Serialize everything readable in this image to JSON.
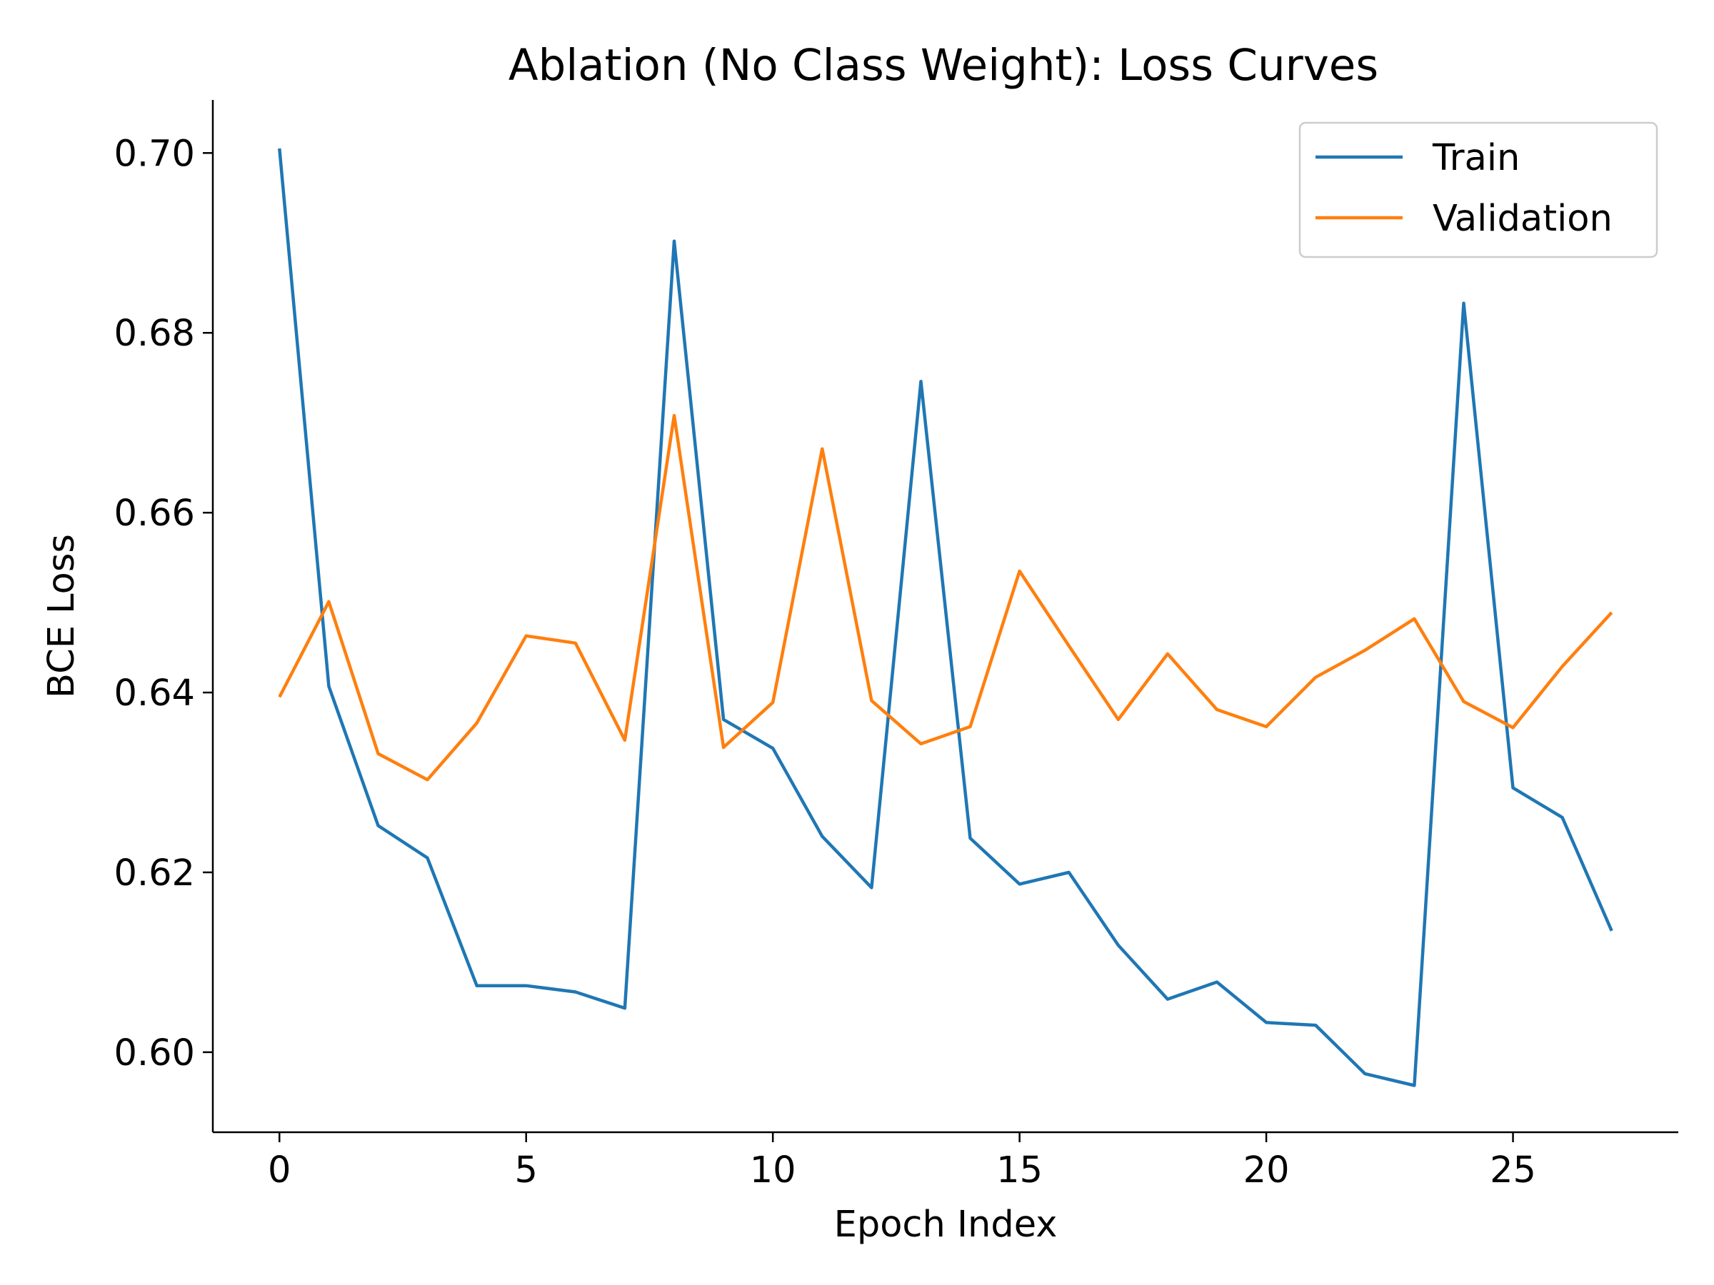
{
  "chart_data": {
    "type": "line",
    "title": "Ablation (No Class Weight): Loss Curves",
    "xlabel": "Epoch Index",
    "ylabel": "BCE Loss",
    "xlim": [
      -1.35,
      28.35
    ],
    "ylim": [
      0.5911,
      0.7059
    ],
    "xticks": [
      0,
      5,
      10,
      15,
      20,
      25
    ],
    "yticks": [
      0.6,
      0.62,
      0.64,
      0.66,
      0.68,
      0.7
    ],
    "ytick_labels": [
      "0.60",
      "0.62",
      "0.64",
      "0.66",
      "0.68",
      "0.70"
    ],
    "grid": false,
    "legend_position": "top-right",
    "x": [
      0,
      1,
      2,
      3,
      4,
      5,
      6,
      7,
      8,
      9,
      10,
      11,
      12,
      13,
      14,
      15,
      16,
      17,
      18,
      19,
      20,
      21,
      22,
      23,
      24,
      25,
      26,
      27
    ],
    "series": [
      {
        "name": "Train",
        "color": "#1f77b4",
        "values": [
          0.7005,
          0.6407,
          0.6252,
          0.6216,
          0.6074,
          0.6074,
          0.6067,
          0.6049,
          0.6902,
          0.637,
          0.6338,
          0.624,
          0.6183,
          0.6746,
          0.6238,
          0.6187,
          0.62,
          0.6119,
          0.6059,
          0.6078,
          0.6033,
          0.603,
          0.5976,
          0.5963,
          0.6833,
          0.6294,
          0.6261,
          0.6135
        ]
      },
      {
        "name": "Validation",
        "color": "#ff7f0e",
        "values": [
          0.6395,
          0.6501,
          0.6332,
          0.6303,
          0.6366,
          0.6463,
          0.6455,
          0.6347,
          0.6708,
          0.6339,
          0.6389,
          0.6671,
          0.6391,
          0.6343,
          0.6362,
          0.6535,
          0.6452,
          0.637,
          0.6443,
          0.6381,
          0.6362,
          0.6417,
          0.6447,
          0.6482,
          0.639,
          0.6361,
          0.6429,
          0.6489
        ]
      }
    ]
  }
}
